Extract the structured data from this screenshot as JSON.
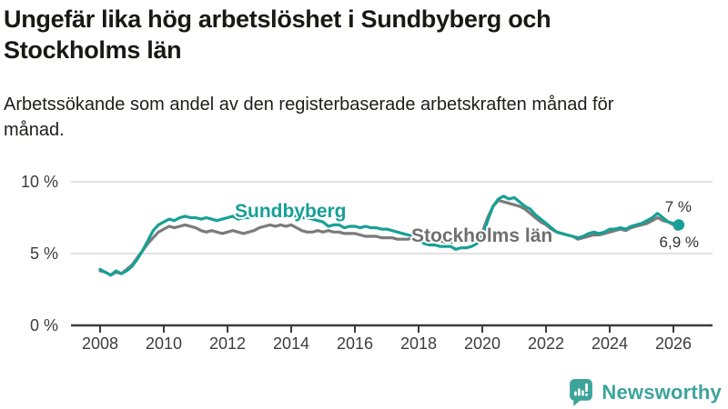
{
  "header": {
    "title": "Ungefär lika hög arbetslöshet i Sundbyberg och Stockholms län",
    "subtitle": "Arbetssökande som andel av den registerbaserade arbetskraften månad för månad."
  },
  "footer": {
    "brand": "Newsworthy"
  },
  "colors": {
    "sundbyberg": "#17A096",
    "stockholm": "#7B7B7B",
    "stockholm_label": "#6F6F6F",
    "axis": "#3C3C3C",
    "grid": "#D9D9D9",
    "annotation_text": "#333333",
    "brand_teal": "#3DA49B",
    "title_text": "#181816"
  },
  "chart_data": {
    "type": "line",
    "title": "Ungefär lika hög arbetslöshet i Sundbyberg och Stockholms län",
    "ylabel": "",
    "xlabel": "",
    "ylim": [
      0,
      10
    ],
    "xlim": [
      2008.0,
      2026.17
    ],
    "grid": "horizontal",
    "legend_position": "inline-labels",
    "x_start": 2008.0,
    "x_step_years": 0.1667,
    "x_ticks": [
      2008,
      2010,
      2012,
      2014,
      2016,
      2018,
      2020,
      2022,
      2024,
      2026
    ],
    "y_ticks": [
      {
        "value": 0,
        "label": "0 %"
      },
      {
        "value": 5,
        "label": "5 %"
      },
      {
        "value": 10,
        "label": "10 %"
      }
    ],
    "series": [
      {
        "name": "Stockholms län",
        "color": "#7B7B7B",
        "end_label": "6,9 %",
        "end_value": 6.9,
        "values": [
          3.8,
          3.7,
          3.5,
          3.7,
          3.6,
          3.9,
          4.2,
          4.7,
          5.2,
          5.7,
          6.1,
          6.5,
          6.7,
          6.9,
          6.8,
          6.9,
          7.0,
          6.9,
          6.8,
          6.6,
          6.5,
          6.6,
          6.5,
          6.4,
          6.5,
          6.6,
          6.5,
          6.4,
          6.5,
          6.6,
          6.8,
          6.9,
          7.0,
          6.9,
          7.0,
          6.9,
          7.0,
          6.8,
          6.6,
          6.5,
          6.5,
          6.6,
          6.5,
          6.6,
          6.5,
          6.5,
          6.4,
          6.4,
          6.4,
          6.3,
          6.2,
          6.2,
          6.2,
          6.1,
          6.1,
          6.1,
          6.0,
          6.0,
          6.0,
          6.1,
          6.1,
          6.0,
          5.9,
          5.9,
          5.9,
          5.8,
          5.8,
          5.8,
          5.9,
          5.9,
          6.0,
          6.1,
          6.5,
          7.5,
          8.3,
          8.7,
          8.6,
          8.5,
          8.4,
          8.3,
          8.1,
          7.8,
          7.5,
          7.2,
          7.0,
          6.7,
          6.5,
          6.4,
          6.3,
          6.2,
          6.0,
          6.1,
          6.2,
          6.3,
          6.3,
          6.4,
          6.5,
          6.6,
          6.7,
          6.6,
          6.8,
          6.9,
          7.0,
          7.1,
          7.3,
          7.5,
          7.3,
          7.2,
          7.0,
          6.9
        ]
      },
      {
        "name": "Sundbyberg",
        "color": "#17A096",
        "end_label": "7 %",
        "end_value": 7.0,
        "values": [
          3.9,
          3.7,
          3.5,
          3.8,
          3.6,
          3.8,
          4.1,
          4.6,
          5.2,
          5.9,
          6.6,
          7.0,
          7.2,
          7.4,
          7.3,
          7.5,
          7.6,
          7.5,
          7.5,
          7.4,
          7.5,
          7.4,
          7.3,
          7.4,
          7.5,
          7.6,
          7.4,
          7.5,
          7.5,
          7.6,
          7.7,
          7.6,
          7.8,
          7.7,
          7.8,
          7.7,
          7.7,
          7.6,
          7.5,
          7.5,
          7.4,
          7.3,
          7.2,
          6.9,
          7.0,
          7.0,
          6.8,
          6.9,
          6.9,
          6.8,
          6.9,
          6.8,
          6.8,
          6.7,
          6.7,
          6.6,
          6.5,
          6.4,
          6.3,
          6.2,
          6.0,
          5.7,
          5.6,
          5.6,
          5.5,
          5.5,
          5.5,
          5.3,
          5.4,
          5.4,
          5.5,
          5.7,
          6.2,
          7.3,
          8.3,
          8.8,
          9.0,
          8.8,
          8.9,
          8.6,
          8.3,
          8.1,
          7.7,
          7.4,
          7.1,
          6.8,
          6.5,
          6.4,
          6.3,
          6.2,
          6.1,
          6.2,
          6.4,
          6.5,
          6.4,
          6.5,
          6.7,
          6.7,
          6.8,
          6.7,
          6.9,
          7.0,
          7.1,
          7.3,
          7.5,
          7.8,
          7.5,
          7.2,
          7.1,
          7.0
        ]
      }
    ]
  }
}
